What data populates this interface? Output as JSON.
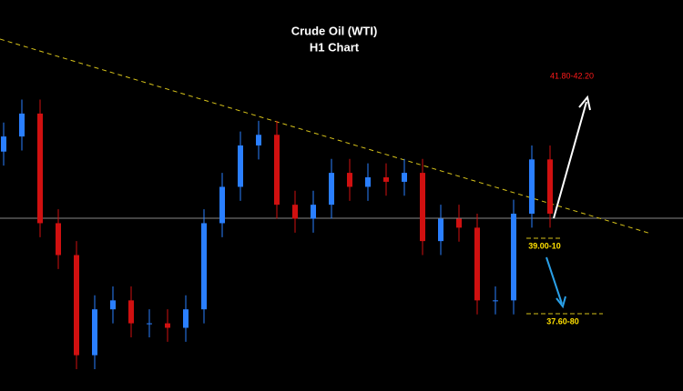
{
  "chart_data": {
    "type": "candlestick",
    "title": "Crude Oil (WTI)",
    "subtitle": "H1 Chart",
    "annotations": [
      "41.80-42.20",
      "39.00-10",
      "37.60-80"
    ],
    "open": [
      40.6,
      40.87,
      41.28,
      39.32,
      38.75,
      36.96,
      37.78,
      37.94,
      37.53,
      37.53,
      37.45,
      37.78,
      39.32,
      39.97,
      40.71,
      40.9,
      39.65,
      39.4,
      39.65,
      40.22,
      39.97,
      40.14,
      40.06,
      40.22,
      39.0,
      39.4,
      39.24,
      37.94,
      37.94,
      39.49,
      40.46
    ],
    "high": [
      41.12,
      41.53,
      41.53,
      39.57,
      39.0,
      38.03,
      38.19,
      38.19,
      37.78,
      37.78,
      38.03,
      39.57,
      40.22,
      40.96,
      41.15,
      41.15,
      39.9,
      39.9,
      40.47,
      40.47,
      40.39,
      40.39,
      40.47,
      40.47,
      39.65,
      39.65,
      39.49,
      38.19,
      39.74,
      40.71,
      40.71
    ],
    "low": [
      40.35,
      40.62,
      39.07,
      38.5,
      36.71,
      36.71,
      37.53,
      37.28,
      37.28,
      37.2,
      37.2,
      37.53,
      39.07,
      39.72,
      40.46,
      39.4,
      39.15,
      39.15,
      39.4,
      39.72,
      39.72,
      39.81,
      39.81,
      38.75,
      38.75,
      38.99,
      37.69,
      37.69,
      37.69,
      39.24,
      39.24
    ],
    "close": [
      40.87,
      41.28,
      39.32,
      38.75,
      36.96,
      37.78,
      37.94,
      37.53,
      37.53,
      37.45,
      37.78,
      39.32,
      39.97,
      40.71,
      40.9,
      39.65,
      39.4,
      39.65,
      40.22,
      39.97,
      40.14,
      40.06,
      40.22,
      39.0,
      39.4,
      39.24,
      37.94,
      37.94,
      39.49,
      40.46,
      39.49
    ],
    "up_color": "#2a7fff",
    "down_color": "#d01010",
    "ylim": [
      36.32,
      43.31
    ]
  }
}
